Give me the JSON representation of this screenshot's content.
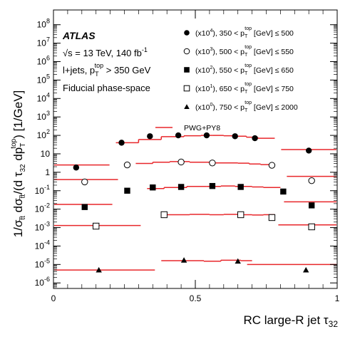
{
  "chart_data": {
    "type": "scatter",
    "title": "",
    "xlabel_main": "RC large-R jet τ",
    "xlabel_sub": "32",
    "ylabel": "1/σtt dσtt/(d τ32 dp_T^top) [1/GeV]",
    "ylabel_parts": {
      "pre": "1/σ",
      "tt1": "t̅t",
      "mid": " dσ",
      "tt2": "t̅t",
      "mid2": "/(d τ",
      "sub32": "32",
      "mid3": " dp",
      "subT": "T",
      "supTop": "top",
      "post": ") [1/GeV]"
    },
    "xlim": [
      0,
      1
    ],
    "ylim_log10": [
      -6.3,
      8.8
    ],
    "yscale": "log",
    "x_tick_labels": [
      "0",
      "0.5",
      "1"
    ],
    "x_tick_values": [
      0,
      0.5,
      1
    ],
    "y_tick_labels": [
      "10-6",
      "10-5",
      "10-4",
      "10-3",
      "10-2",
      "10-1",
      "1",
      "10",
      "102",
      "103",
      "104",
      "105",
      "106",
      "107",
      "108"
    ],
    "y_tick_powers": [
      -6,
      -5,
      -4,
      -3,
      -2,
      -1,
      0,
      1,
      2,
      3,
      4,
      5,
      6,
      7,
      8
    ],
    "info": {
      "atlas": "ATLAS",
      "energy": "√s = 13 TeV, 140  fb",
      "energy_sup": "-1",
      "channel": "l+jets, p",
      "channel_sub": "T",
      "channel_sup": "top",
      "channel_cut": " > 350 GeV",
      "phase_space": "Fiducial phase-space"
    },
    "legend": [
      {
        "marker": "filled-circle",
        "scale": "(x10",
        "scale_pow": "4",
        "range": "), 350 < p",
        "range_end": " [GeV] ≤ 500"
      },
      {
        "marker": "open-circle",
        "scale": "(x10",
        "scale_pow": "3",
        "range": "), 500 < p",
        "range_end": " [GeV] ≤ 550"
      },
      {
        "marker": "filled-square",
        "scale": "(x10",
        "scale_pow": "2",
        "range": "), 550 < p",
        "range_end": " [GeV] ≤ 650"
      },
      {
        "marker": "open-square",
        "scale": "(x10",
        "scale_pow": "1",
        "range": "), 650 < p",
        "range_end": " [GeV] ≤ 750"
      },
      {
        "marker": "filled-triangle",
        "scale": "(x10",
        "scale_pow": "0",
        "range": "), 750 < p",
        "range_end": " [GeV] ≤ 2000"
      }
    ],
    "legend_pT_sub": "T",
    "legend_pT_sup": "top",
    "legend_prediction": "PWG+PY8",
    "series": [
      {
        "name": "350 < pT ≤ 500 (x10^4)",
        "marker": "filled-circle",
        "x": [
          0.08,
          0.24,
          0.34,
          0.44,
          0.54,
          0.64,
          0.71,
          0.9
        ],
        "y": [
          1.8,
          40,
          90,
          100,
          100,
          90,
          70,
          15
        ],
        "mc_edges": [
          0.22,
          0.3,
          0.38,
          0.46,
          0.52,
          0.56,
          0.6,
          0.64,
          0.68,
          0.72,
          0.78
        ],
        "mc_y": [
          40,
          60,
          85,
          95,
          100,
          100,
          95,
          90,
          80,
          70
        ]
      },
      {
        "name": "500 < pT ≤ 550 (x10^3)",
        "marker": "open-circle",
        "x": [
          0.11,
          0.26,
          0.45,
          0.56,
          0.77,
          0.91
        ],
        "y": [
          0.3,
          2.5,
          3.6,
          3.2,
          2.4,
          0.35
        ],
        "mc_edges": [
          0.29,
          0.35,
          0.41,
          0.48,
          0.57,
          0.65,
          0.69,
          0.73,
          0.78
        ],
        "mc_y": [
          3,
          3.5,
          3.8,
          3.5,
          3.2,
          3.1,
          2.8,
          2.6
        ]
      },
      {
        "name": "550 < pT ≤ 650 (x10^2)",
        "marker": "filled-square",
        "x": [
          0.11,
          0.26,
          0.35,
          0.45,
          0.56,
          0.66,
          0.81,
          0.91
        ],
        "y": [
          0.013,
          0.1,
          0.15,
          0.16,
          0.18,
          0.16,
          0.09,
          0.016
        ],
        "mc_edges": [
          0.33,
          0.39,
          0.47,
          0.54,
          0.59,
          0.64,
          0.7,
          0.74,
          0.8
        ],
        "mc_y": [
          0.13,
          0.15,
          0.17,
          0.17,
          0.18,
          0.17,
          0.16,
          0.15
        ]
      },
      {
        "name": "650 < pT ≤ 750 (x10^1)",
        "marker": "open-square",
        "x": [
          0.15,
          0.39,
          0.66,
          0.77,
          0.91
        ],
        "y": [
          0.0012,
          0.005,
          0.005,
          0.0035,
          0.0011
        ],
        "mc_edges": [
          0.38,
          0.48,
          0.55,
          0.6,
          0.66,
          0.7,
          0.74,
          0.78
        ],
        "mc_y": [
          0.005,
          0.0052,
          0.005,
          0.0052,
          0.005,
          0.0048,
          0.005
        ]
      },
      {
        "name": "750 < pT ≤ 2000 (x10^0)",
        "marker": "filled-triangle",
        "x": [
          0.16,
          0.46,
          0.65,
          0.89
        ],
        "y": [
          5e-06,
          1.7e-05,
          1.5e-05,
          5e-06
        ],
        "mc_edges": [
          0.38,
          0.47,
          0.53,
          0.59,
          0.66,
          0.7
        ],
        "mc_y": [
          1.6e-05,
          1.6e-05,
          1.5e-05,
          1.7e-05,
          1.6e-05
        ]
      }
    ],
    "edge_segments": [
      {
        "x": [
          0.0,
          0.2
        ],
        "y": 2.5
      },
      {
        "x": [
          0.0,
          0.23
        ],
        "y": 0.4
      },
      {
        "x": [
          0.0,
          0.21
        ],
        "y": 0.018
      },
      {
        "x": [
          0.0,
          0.31
        ],
        "y": 0.0013
      },
      {
        "x": [
          0.0,
          0.36
        ],
        "y": 5e-06
      },
      {
        "x": [
          0.8,
          1.0
        ],
        "y": 17
      },
      {
        "x": [
          0.82,
          1.0
        ],
        "y": 0.6
      },
      {
        "x": [
          0.81,
          1.0
        ],
        "y": 0.025
      },
      {
        "x": [
          0.79,
          1.0
        ],
        "y": 0.0014
      },
      {
        "x": [
          0.68,
          1.0
        ],
        "y": 1e-05
      }
    ]
  }
}
